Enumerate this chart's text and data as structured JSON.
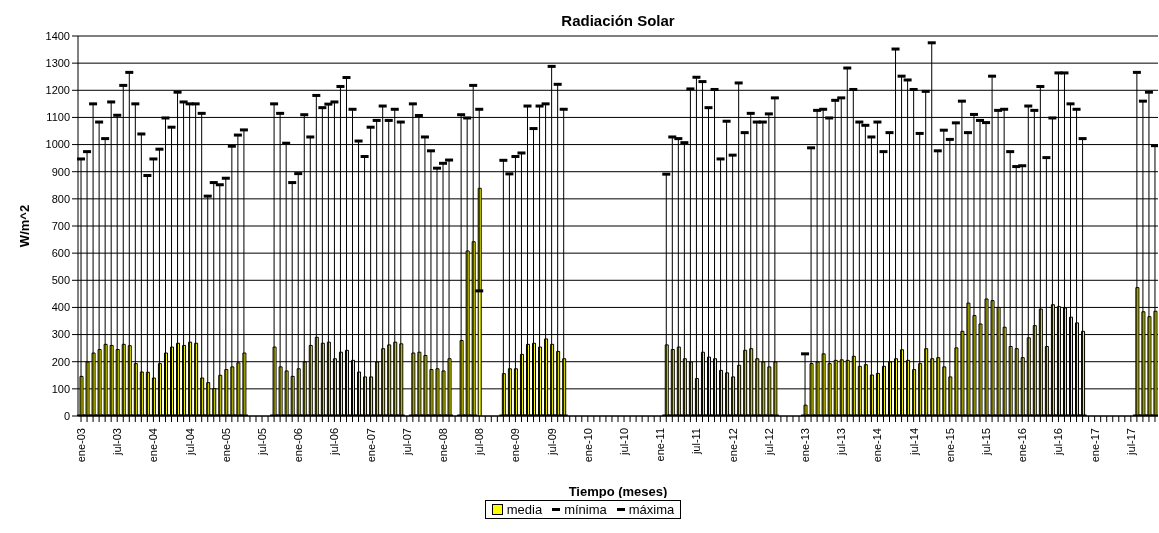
{
  "chart_data": {
    "type": "bar",
    "title": "Radiación Solar",
    "xlabel": "Tiempo (meses)",
    "ylabel": "W/m^2",
    "categories": [
      "ene-03",
      null,
      null,
      null,
      null,
      null,
      "jul-03",
      null,
      null,
      null,
      null,
      null,
      "ene-04",
      null,
      null,
      null,
      null,
      null,
      "jul-04",
      null,
      null,
      null,
      null,
      null,
      "ene-05",
      null,
      null,
      null,
      null,
      null,
      "jul-05",
      null,
      null,
      null,
      null,
      null,
      "ene-06",
      null,
      null,
      null,
      null,
      null,
      "jul-06",
      null,
      null,
      null,
      null,
      null,
      "ene-07",
      null,
      null,
      null,
      null,
      null,
      "jul-07",
      null,
      null,
      null,
      null,
      null,
      "ene-08",
      null,
      null,
      null,
      null,
      null,
      "jul-08",
      null,
      null,
      null,
      null,
      null,
      "ene-09",
      null,
      null,
      null,
      null,
      null,
      "jul-09",
      null,
      null,
      null,
      null,
      null,
      "ene-10",
      null,
      null,
      null,
      null,
      null,
      "jul-10",
      null,
      null,
      null,
      null,
      null,
      "ene-11",
      null,
      null,
      null,
      null,
      null,
      "jul-11",
      null,
      null,
      null,
      null,
      null,
      "ene-12",
      null,
      null,
      null,
      null,
      null,
      "jul-12",
      null,
      null,
      null,
      null,
      null,
      "ene-13",
      null,
      null,
      null,
      null,
      null,
      "jul-13",
      null,
      null,
      null,
      null,
      null,
      "ene-14",
      null,
      null,
      null,
      null,
      null,
      "jul-14",
      null,
      null,
      null,
      null,
      null,
      "ene-15",
      null,
      null,
      null,
      null,
      null,
      "jul-15",
      null,
      null,
      null,
      null,
      null,
      "ene-16",
      null,
      null,
      null,
      null,
      null,
      "jul-16",
      null,
      null,
      null,
      null,
      null,
      "ene-17",
      null,
      null,
      null,
      null,
      null,
      "jul-17",
      null,
      null,
      null,
      null
    ],
    "series": [
      {
        "name": "media",
        "color": "#ffff00",
        "values": [
          146,
          199,
          232,
          245,
          264,
          260,
          245,
          264,
          259,
          193,
          162,
          161,
          140,
          193,
          232,
          254,
          268,
          260,
          272,
          268,
          140,
          123,
          101,
          150,
          171,
          181,
          196,
          232,
          null,
          null,
          null,
          null,
          254,
          181,
          166,
          146,
          174,
          199,
          260,
          290,
          268,
          272,
          211,
          235,
          242,
          205,
          162,
          144,
          144,
          199,
          248,
          262,
          272,
          266,
          null,
          232,
          235,
          223,
          171,
          174,
          166,
          211,
          null,
          278,
          608,
          642,
          839,
          null,
          null,
          null,
          156,
          174,
          174,
          227,
          264,
          268,
          254,
          284,
          264,
          238,
          211,
          null,
          null,
          null,
          null,
          null,
          null,
          null,
          null,
          null,
          null,
          null,
          null,
          null,
          null,
          null,
          null,
          262,
          245,
          254,
          211,
          199,
          138,
          235,
          217,
          211,
          168,
          159,
          144,
          187,
          242,
          248,
          211,
          199,
          181,
          199,
          null,
          null,
          null,
          null,
          40,
          193,
          199,
          229,
          193,
          205,
          207,
          205,
          220,
          183,
          189,
          151,
          157,
          183,
          199,
          211,
          244,
          205,
          171,
          193,
          248,
          211,
          215,
          181,
          144,
          251,
          312,
          416,
          370,
          339,
          431,
          425,
          400,
          327,
          256,
          248,
          215,
          288,
          333,
          394,
          256,
          410,
          403,
          398,
          364,
          343,
          312,
          null,
          null,
          null,
          null,
          null,
          null,
          null,
          null,
          473,
          384,
          366,
          386
        ]
      },
      {
        "name": "mínima",
        "type": "scatter",
        "marker": "square",
        "color": "#000000",
        "values": [
          0,
          0,
          0,
          0,
          0,
          0,
          0,
          0,
          0,
          0,
          0,
          0,
          0,
          0,
          0,
          0,
          0,
          0,
          0,
          0,
          0,
          0,
          0,
          0,
          0,
          0,
          0,
          0,
          null,
          null,
          null,
          null,
          0,
          0,
          0,
          0,
          0,
          0,
          0,
          0,
          0,
          0,
          0,
          0,
          0,
          0,
          0,
          0,
          0,
          0,
          0,
          0,
          0,
          0,
          null,
          0,
          0,
          0,
          0,
          0,
          0,
          0,
          null,
          0,
          0,
          0,
          461,
          null,
          null,
          null,
          0,
          0,
          0,
          0,
          0,
          0,
          0,
          0,
          0,
          0,
          0,
          null,
          null,
          null,
          null,
          null,
          null,
          null,
          null,
          null,
          null,
          null,
          null,
          null,
          null,
          null,
          null,
          0,
          0,
          0,
          0,
          0,
          0,
          0,
          0,
          0,
          0,
          0,
          0,
          0,
          0,
          0,
          0,
          0,
          0,
          0,
          null,
          null,
          null,
          null,
          0,
          0,
          0,
          0,
          0,
          0,
          0,
          0,
          0,
          0,
          0,
          0,
          0,
          0,
          0,
          0,
          0,
          0,
          0,
          0,
          0,
          0,
          0,
          0,
          0,
          0,
          0,
          0,
          0,
          0,
          0,
          0,
          0,
          0,
          0,
          0,
          0,
          0,
          0,
          0,
          0,
          0,
          0,
          0,
          0,
          0,
          0,
          null,
          null,
          null,
          null,
          null,
          null,
          null,
          null,
          0,
          0,
          0,
          0
        ]
      },
      {
        "name": "máxima",
        "type": "scatter",
        "marker": "square",
        "color": "#000000",
        "values": [
          947,
          974,
          1150,
          1083,
          1022,
          1157,
          1108,
          1218,
          1266,
          1150,
          1039,
          886,
          947,
          983,
          1098,
          1064,
          1193,
          1157,
          1150,
          1150,
          1115,
          810,
          860,
          852,
          876,
          994,
          1035,
          1054,
          null,
          null,
          null,
          null,
          1150,
          1115,
          1005,
          860,
          893,
          1110,
          1028,
          1181,
          1136,
          1149,
          1157,
          1214,
          1247,
          1130,
          1013,
          956,
          1064,
          1089,
          1142,
          1089,
          1130,
          1083,
          null,
          1150,
          1107,
          1028,
          977,
          913,
          931,
          943,
          null,
          1110,
          1098,
          1218,
          1130,
          null,
          null,
          null,
          942,
          892,
          956,
          969,
          1142,
          1059,
          1142,
          1150,
          1288,
          1222,
          1130,
          null,
          null,
          null,
          null,
          null,
          null,
          null,
          null,
          null,
          null,
          null,
          null,
          null,
          null,
          null,
          null,
          891,
          1028,
          1022,
          1007,
          1205,
          1248,
          1232,
          1136,
          1203,
          947,
          1086,
          961,
          1227,
          1044,
          1115,
          1083,
          1083,
          1113,
          1172,
          null,
          null,
          null,
          null,
          229,
          988,
          1126,
          1130,
          1098,
          1163,
          1172,
          1282,
          1203,
          1083,
          1071,
          1028,
          1083,
          974,
          1044,
          1352,
          1252,
          1238,
          1203,
          1041,
          1196,
          1375,
          977,
          1053,
          1019,
          1080,
          1160,
          1044,
          1111,
          1089,
          1081,
          1252,
          1126,
          1130,
          974,
          919,
          922,
          1142,
          1126,
          1214,
          952,
          1098,
          1264,
          1264,
          1150,
          1130,
          1022,
          null,
          null,
          null,
          null,
          null,
          null,
          null,
          null,
          1266,
          1160,
          1193,
          996
        ]
      }
    ],
    "ylim": [
      0,
      1400
    ],
    "yticks": [
      0,
      100,
      200,
      300,
      400,
      500,
      600,
      700,
      800,
      900,
      1000,
      1100,
      1200,
      1300,
      1400
    ],
    "grid": "y",
    "legend": "bottom"
  }
}
